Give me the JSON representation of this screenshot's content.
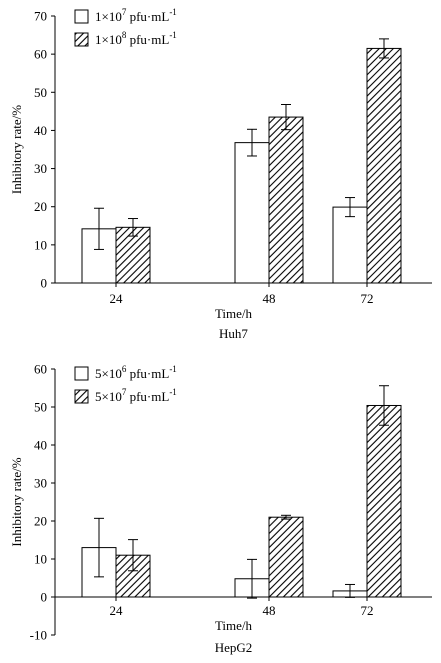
{
  "colors": {
    "axis": "#000000",
    "open_fill": "#ffffff",
    "hatch": "#000000"
  },
  "chart_data": [
    {
      "type": "bar",
      "title": "Huh7",
      "xlabel": "Time/h",
      "ylabel": "Inhibitory rate/%",
      "ylim": [
        0,
        70
      ],
      "yticks": [
        0,
        10,
        20,
        30,
        40,
        50,
        60,
        70
      ],
      "categories": [
        "24",
        "48",
        "72"
      ],
      "grid": false,
      "legend_position": "top-left",
      "series": [
        {
          "name": "1×10",
          "sup": "7",
          "unit": " pfu·mL",
          "unit_sup": "-1",
          "pattern": "open",
          "values": [
            14.2,
            36.8,
            19.9
          ],
          "errors": [
            5.4,
            3.5,
            2.5
          ]
        },
        {
          "name": "1×10",
          "sup": "8",
          "unit": " pfu·mL",
          "unit_sup": "-1",
          "pattern": "hatch",
          "values": [
            14.6,
            43.5,
            61.5
          ],
          "errors": [
            2.3,
            3.3,
            2.5
          ]
        }
      ]
    },
    {
      "type": "bar",
      "title": "HepG2",
      "xlabel": "Time/h",
      "ylabel": "Inhibitory rate/%",
      "ylim": [
        -10,
        60
      ],
      "yticks": [
        -10,
        0,
        10,
        20,
        30,
        40,
        50,
        60
      ],
      "categories": [
        "24",
        "48",
        "72"
      ],
      "grid": false,
      "legend_position": "top-left",
      "series": [
        {
          "name": "5×10",
          "sup": "6",
          "unit": " pfu·mL",
          "unit_sup": "-1",
          "pattern": "open",
          "values": [
            13.0,
            4.8,
            1.6
          ],
          "errors": [
            7.7,
            5.1,
            1.7
          ]
        },
        {
          "name": "5×10",
          "sup": "7",
          "unit": " pfu·mL",
          "unit_sup": "-1",
          "pattern": "hatch",
          "values": [
            11.0,
            21.0,
            50.4
          ],
          "errors": [
            4.1,
            0.5,
            5.2
          ]
        }
      ]
    }
  ]
}
